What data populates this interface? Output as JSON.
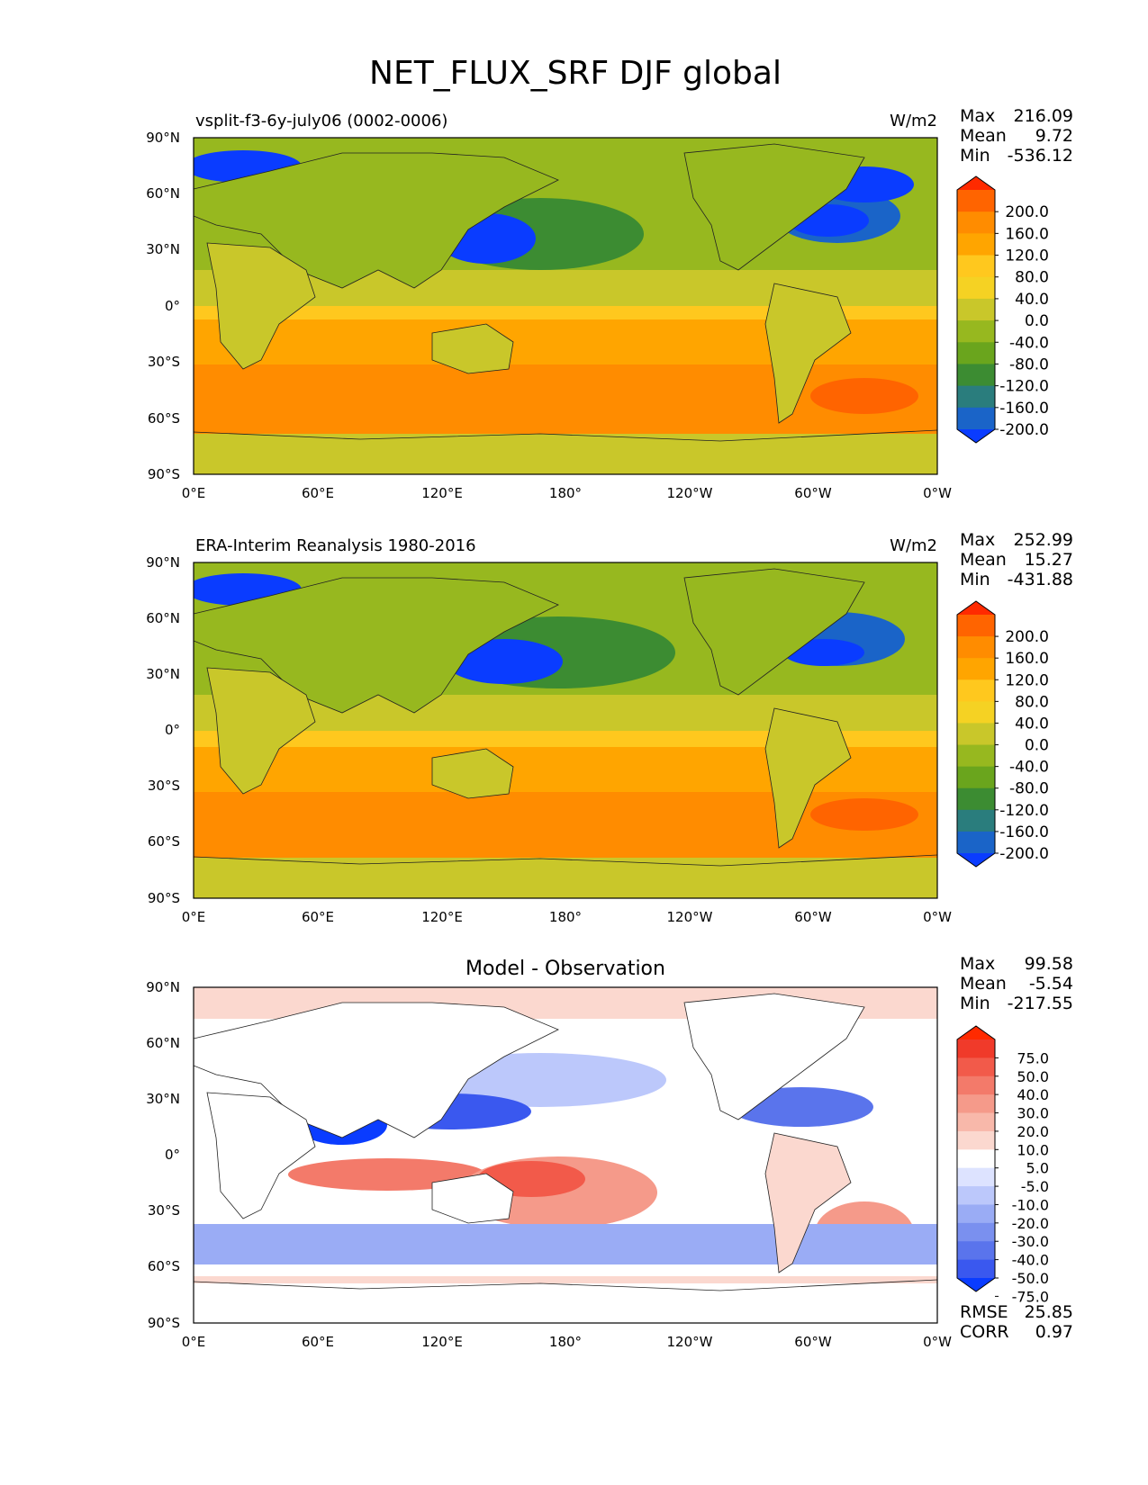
{
  "figure": {
    "title": "NET_FLUX_SRF DJF global"
  },
  "axes": {
    "lat_ticks": [
      "90°N",
      "60°N",
      "30°N",
      "0°",
      "30°S",
      "60°S",
      "90°S"
    ],
    "lon_ticks": [
      "0°E",
      "60°E",
      "120°E",
      "180°",
      "120°W",
      "60°W",
      "0°W"
    ]
  },
  "chart_data": [
    {
      "type": "heatmap",
      "title": "vsplit-f3-6y-july06 (0002-0006)",
      "units": "W/m2",
      "stats": {
        "max_label": "Max",
        "max": "216.09",
        "mean_label": "Mean",
        "mean": "9.72",
        "min_label": "Min",
        "min": "-536.12"
      },
      "xlim": [
        0,
        360
      ],
      "ylim": [
        -90,
        90
      ],
      "colorbar": {
        "levels": [
          "200.0",
          "160.0",
          "120.0",
          "80.0",
          "40.0",
          "0.0",
          "-40.0",
          "-80.0",
          "-120.0",
          "-160.0",
          "-200.0"
        ],
        "colors": [
          "#ff2a00",
          "#ff6400",
          "#ff8c00",
          "#ffa500",
          "#ffc81e",
          "#f5d223",
          "#c9c72a",
          "#97b81f",
          "#6aa51d",
          "#3c8c32",
          "#2a7d7d",
          "#1a64c8",
          "#0a3cff"
        ]
      }
    },
    {
      "type": "heatmap",
      "title": "ERA-Interim Reanalysis 1980-2016",
      "units": "W/m2",
      "stats": {
        "max_label": "Max",
        "max": "252.99",
        "mean_label": "Mean",
        "mean": "15.27",
        "min_label": "Min",
        "min": "-431.88"
      },
      "xlim": [
        0,
        360
      ],
      "ylim": [
        -90,
        90
      ],
      "colorbar": {
        "levels": [
          "200.0",
          "160.0",
          "120.0",
          "80.0",
          "40.0",
          "0.0",
          "-40.0",
          "-80.0",
          "-120.0",
          "-160.0",
          "-200.0"
        ],
        "colors": [
          "#ff2a00",
          "#ff6400",
          "#ff8c00",
          "#ffa500",
          "#ffc81e",
          "#f5d223",
          "#c9c72a",
          "#97b81f",
          "#6aa51d",
          "#3c8c32",
          "#2a7d7d",
          "#1a64c8",
          "#0a3cff"
        ]
      }
    },
    {
      "type": "heatmap",
      "title": "Model - Observation",
      "units": "",
      "stats": {
        "max_label": "Max",
        "max": "99.58",
        "mean_label": "Mean",
        "mean": "-5.54",
        "min_label": "Min",
        "min": "-217.55"
      },
      "rmse_label": "RMSE",
      "rmse": "25.85",
      "corr_label": "CORR",
      "corr": "0.97",
      "xlim": [
        0,
        360
      ],
      "ylim": [
        -90,
        90
      ],
      "colorbar": {
        "levels": [
          "75.0",
          "50.0",
          "40.0",
          "30.0",
          "20.0",
          "10.0",
          "5.0",
          "-5.0",
          "-10.0",
          "-20.0",
          "-30.0",
          "-40.0",
          "-50.0",
          "-75.0"
        ],
        "colors": [
          "#ff2a00",
          "#f03a2a",
          "#f25a4a",
          "#f37a6a",
          "#f59a8a",
          "#f8b8aa",
          "#fbd8cf",
          "#ffffff",
          "#dde3ff",
          "#bcc8fb",
          "#9aacf5",
          "#7a90ef",
          "#5a74ec",
          "#3a58ef",
          "#0a3cff"
        ]
      }
    }
  ]
}
